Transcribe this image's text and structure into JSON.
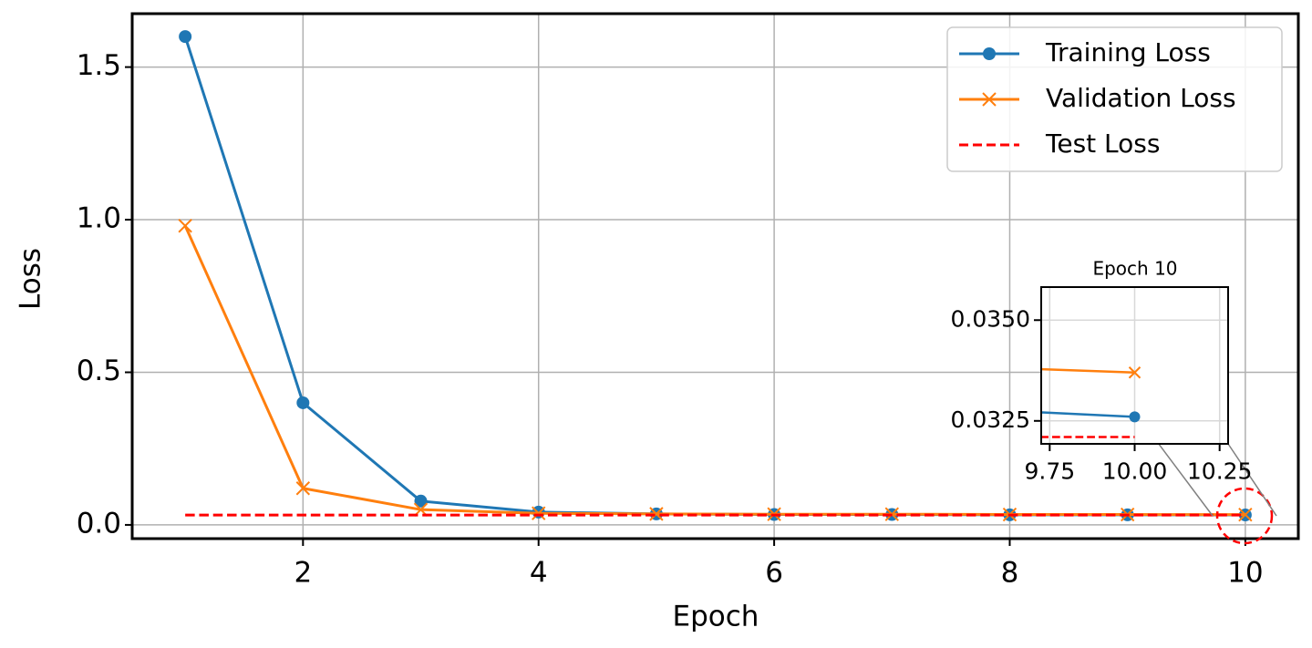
{
  "chart_data": [
    {
      "type": "line",
      "x_label": "Epoch",
      "y_label": "Loss",
      "x": [
        1,
        2,
        3,
        4,
        5,
        6,
        7,
        8,
        9,
        10
      ],
      "series": [
        {
          "name": "Training Loss",
          "color": "#1f77b4",
          "marker": "circle",
          "linestyle": "solid",
          "values": [
            1.6,
            0.4,
            0.078,
            0.042,
            0.036,
            0.034,
            0.034,
            0.033,
            0.033,
            0.0326
          ]
        },
        {
          "name": "Validation Loss",
          "color": "#ff7f0e",
          "marker": "x",
          "linestyle": "solid",
          "values": [
            0.98,
            0.12,
            0.05,
            0.038,
            0.036,
            0.035,
            0.035,
            0.034,
            0.034,
            0.0337
          ]
        },
        {
          "name": "Test Loss",
          "color": "#ff0000",
          "marker": null,
          "linestyle": "dashed",
          "values": [
            0.0321,
            0.0321,
            0.0321,
            0.0321,
            0.0321,
            0.0321,
            0.0321,
            0.0321,
            0.0321,
            0.0321
          ]
        }
      ],
      "xlim": [
        0.55,
        10.45
      ],
      "ylim": [
        -0.045,
        1.675
      ],
      "xticks": [
        2,
        4,
        6,
        8,
        10
      ],
      "yticks": [
        {
          "value": 0,
          "label": "0.0"
        },
        0.5,
        {
          "value": 1,
          "label": "1.0"
        },
        1.5
      ],
      "grid": true,
      "legend": "upper right"
    },
    {
      "type": "inset",
      "title": "Epoch 10",
      "xlim": [
        9.725,
        10.275
      ],
      "ylim": [
        0.03193,
        0.03582
      ],
      "xticks": [
        9.75,
        {
          "value": 10,
          "label": "10.00"
        },
        10.25
      ],
      "yticks": [
        {
          "value": 0.0325,
          "label": "0.0325"
        },
        {
          "value": 0.035,
          "label": "0.0350"
        }
      ],
      "grid": true
    }
  ]
}
